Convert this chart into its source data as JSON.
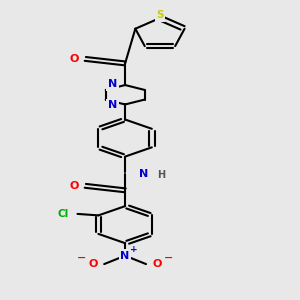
{
  "bg_color": "#e8e8e8",
  "bond_color": "#000000",
  "bond_width": 1.5,
  "atom_colors": {
    "S": "#cccc00",
    "N": "#0000cc",
    "O": "#ff0000",
    "Cl": "#00aa00",
    "NH": "#0000cc",
    "H": "#555555"
  },
  "figsize": [
    3.0,
    3.0
  ],
  "dpi": 100,
  "xlim": [
    2.5,
    8.5
  ],
  "ylim": [
    0.2,
    10.2
  ]
}
